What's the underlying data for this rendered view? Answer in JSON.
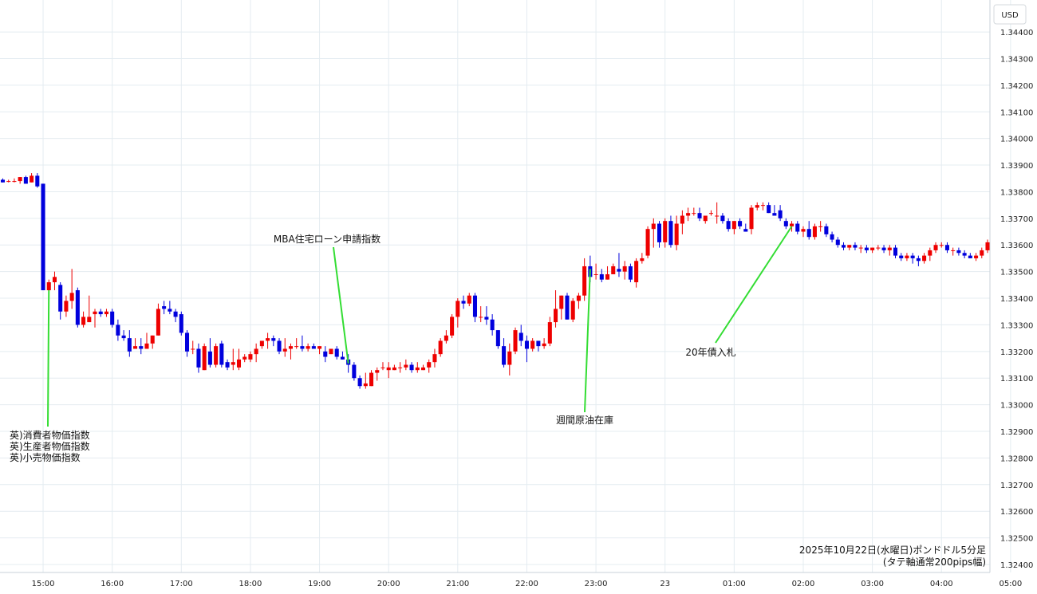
{
  "chart_data": {
    "type": "candlestick",
    "title_line1": "2025年10月22日(水曜日)ポンドドル5分足",
    "title_line2": "(タテ軸通常200pips幅)",
    "currency_label": "USD",
    "ylim": [
      1.3237,
      1.3452
    ],
    "y_ticks": [
      "1.34400",
      "1.34300",
      "1.34200",
      "1.34100",
      "1.34000",
      "1.33900",
      "1.33800",
      "1.33700",
      "1.33600",
      "1.33500",
      "1.33400",
      "1.33300",
      "1.33200",
      "1.33100",
      "1.33000",
      "1.32900",
      "1.32800",
      "1.32700",
      "1.32600",
      "1.32500",
      "1.32400"
    ],
    "x_ticks": [
      "15:00",
      "16:00",
      "17:00",
      "18:00",
      "19:00",
      "20:00",
      "21:00",
      "22:00",
      "23:00",
      "23",
      "01:00",
      "02:00",
      "03:00",
      "04:00",
      "05:00"
    ],
    "colors": {
      "up": "#ee0000",
      "down": "#0000dd",
      "grid": "#e4ecf1",
      "annotation_line": "#33dd33"
    },
    "annotations": [
      {
        "lines": [
          "英)消費者物価指数",
          "英)生産者物価指数",
          "英)小売物価指数"
        ],
        "time_index": 8
      },
      {
        "lines": [
          "MBA住宅ローン申請指数"
        ],
        "time_index": 60
      },
      {
        "lines": [
          "週間原油在庫"
        ],
        "time_index": 102
      },
      {
        "lines": [
          "20年債入札"
        ],
        "time_index": 137
      }
    ],
    "candles": [
      {
        "o": 1.33845,
        "h": 1.3385,
        "l": 1.33835,
        "c": 1.33835
      },
      {
        "o": 1.3384,
        "h": 1.33845,
        "l": 1.33835,
        "c": 1.3384
      },
      {
        "o": 1.3384,
        "h": 1.3385,
        "l": 1.33835,
        "c": 1.3384
      },
      {
        "o": 1.3384,
        "h": 1.33855,
        "l": 1.3383,
        "c": 1.33855
      },
      {
        "o": 1.33855,
        "h": 1.3386,
        "l": 1.3383,
        "c": 1.3383
      },
      {
        "o": 1.33835,
        "h": 1.3387,
        "l": 1.33835,
        "c": 1.3386
      },
      {
        "o": 1.3386,
        "h": 1.3387,
        "l": 1.33815,
        "c": 1.3382
      },
      {
        "o": 1.3383,
        "h": 1.3383,
        "l": 1.3344,
        "c": 1.3343
      },
      {
        "o": 1.3343,
        "h": 1.3347,
        "l": 1.3339,
        "c": 1.3346
      },
      {
        "o": 1.3346,
        "h": 1.335,
        "l": 1.3343,
        "c": 1.3348
      },
      {
        "o": 1.3345,
        "h": 1.3346,
        "l": 1.3332,
        "c": 1.3335
      },
      {
        "o": 1.3335,
        "h": 1.3341,
        "l": 1.3333,
        "c": 1.3339
      },
      {
        "o": 1.3339,
        "h": 1.3351,
        "l": 1.3336,
        "c": 1.3342
      },
      {
        "o": 1.3343,
        "h": 1.3344,
        "l": 1.3329,
        "c": 1.333
      },
      {
        "o": 1.333,
        "h": 1.3335,
        "l": 1.3329,
        "c": 1.3333
      },
      {
        "o": 1.3331,
        "h": 1.3341,
        "l": 1.3331,
        "c": 1.3333
      },
      {
        "o": 1.3334,
        "h": 1.3336,
        "l": 1.3329,
        "c": 1.3335
      },
      {
        "o": 1.3335,
        "h": 1.3336,
        "l": 1.3333,
        "c": 1.3334
      },
      {
        "o": 1.3334,
        "h": 1.3336,
        "l": 1.3333,
        "c": 1.3335
      },
      {
        "o": 1.3335,
        "h": 1.3336,
        "l": 1.3329,
        "c": 1.333
      },
      {
        "o": 1.333,
        "h": 1.3332,
        "l": 1.3324,
        "c": 1.3326
      },
      {
        "o": 1.3326,
        "h": 1.3328,
        "l": 1.3324,
        "c": 1.3325
      },
      {
        "o": 1.3325,
        "h": 1.3328,
        "l": 1.3318,
        "c": 1.332
      },
      {
        "o": 1.3321,
        "h": 1.3325,
        "l": 1.3321,
        "c": 1.3322
      },
      {
        "o": 1.3322,
        "h": 1.3325,
        "l": 1.3319,
        "c": 1.3321
      },
      {
        "o": 1.3321,
        "h": 1.3327,
        "l": 1.3321,
        "c": 1.3323
      },
      {
        "o": 1.3323,
        "h": 1.3326,
        "l": 1.3321,
        "c": 1.3326
      },
      {
        "o": 1.3326,
        "h": 1.3338,
        "l": 1.3326,
        "c": 1.3336
      },
      {
        "o": 1.3337,
        "h": 1.3339,
        "l": 1.3334,
        "c": 1.3336
      },
      {
        "o": 1.3336,
        "h": 1.3339,
        "l": 1.3334,
        "c": 1.3335
      },
      {
        "o": 1.3335,
        "h": 1.3336,
        "l": 1.3331,
        "c": 1.3333
      },
      {
        "o": 1.3334,
        "h": 1.3335,
        "l": 1.3326,
        "c": 1.3327
      },
      {
        "o": 1.3327,
        "h": 1.3328,
        "l": 1.3318,
        "c": 1.332
      },
      {
        "o": 1.3321,
        "h": 1.3324,
        "l": 1.3319,
        "c": 1.3321
      },
      {
        "o": 1.3321,
        "h": 1.3323,
        "l": 1.3312,
        "c": 1.3314
      },
      {
        "o": 1.3313,
        "h": 1.3323,
        "l": 1.3313,
        "c": 1.3322
      },
      {
        "o": 1.332,
        "h": 1.3325,
        "l": 1.3314,
        "c": 1.3315
      },
      {
        "o": 1.3315,
        "h": 1.3323,
        "l": 1.3314,
        "c": 1.3322
      },
      {
        "o": 1.3323,
        "h": 1.3324,
        "l": 1.3314,
        "c": 1.3315
      },
      {
        "o": 1.3316,
        "h": 1.3317,
        "l": 1.3313,
        "c": 1.3314
      },
      {
        "o": 1.3315,
        "h": 1.3321,
        "l": 1.3313,
        "c": 1.3316
      },
      {
        "o": 1.3314,
        "h": 1.3321,
        "l": 1.3313,
        "c": 1.3317
      },
      {
        "o": 1.3317,
        "h": 1.3319,
        "l": 1.3316,
        "c": 1.3318
      },
      {
        "o": 1.3317,
        "h": 1.332,
        "l": 1.3316,
        "c": 1.3319
      },
      {
        "o": 1.3319,
        "h": 1.3323,
        "l": 1.3316,
        "c": 1.3321
      },
      {
        "o": 1.3322,
        "h": 1.3324,
        "l": 1.3321,
        "c": 1.3324
      },
      {
        "o": 1.3324,
        "h": 1.3327,
        "l": 1.3321,
        "c": 1.3325
      },
      {
        "o": 1.3325,
        "h": 1.3326,
        "l": 1.3322,
        "c": 1.3324
      },
      {
        "o": 1.3324,
        "h": 1.3325,
        "l": 1.3319,
        "c": 1.332
      },
      {
        "o": 1.332,
        "h": 1.3325,
        "l": 1.3318,
        "c": 1.3321
      },
      {
        "o": 1.3321,
        "h": 1.3323,
        "l": 1.3317,
        "c": 1.3322
      },
      {
        "o": 1.3322,
        "h": 1.3325,
        "l": 1.3321,
        "c": 1.3322
      },
      {
        "o": 1.3322,
        "h": 1.3326,
        "l": 1.332,
        "c": 1.3321
      },
      {
        "o": 1.3321,
        "h": 1.3323,
        "l": 1.332,
        "c": 1.3322
      },
      {
        "o": 1.3322,
        "h": 1.3323,
        "l": 1.3321,
        "c": 1.3321
      },
      {
        "o": 1.3321,
        "h": 1.3322,
        "l": 1.3319,
        "c": 1.3322
      },
      {
        "o": 1.332,
        "h": 1.3322,
        "l": 1.3316,
        "c": 1.3318
      },
      {
        "o": 1.3319,
        "h": 1.3321,
        "l": 1.3319,
        "c": 1.3321
      },
      {
        "o": 1.3321,
        "h": 1.3322,
        "l": 1.3317,
        "c": 1.3318
      },
      {
        "o": 1.3318,
        "h": 1.332,
        "l": 1.3317,
        "c": 1.3317
      },
      {
        "o": 1.3317,
        "h": 1.3319,
        "l": 1.3312,
        "c": 1.3315
      },
      {
        "o": 1.3315,
        "h": 1.3316,
        "l": 1.3309,
        "c": 1.331
      },
      {
        "o": 1.331,
        "h": 1.3311,
        "l": 1.3306,
        "c": 1.3307
      },
      {
        "o": 1.3307,
        "h": 1.3312,
        "l": 1.3306,
        "c": 1.3308
      },
      {
        "o": 1.3307,
        "h": 1.3313,
        "l": 1.3307,
        "c": 1.3312
      },
      {
        "o": 1.3312,
        "h": 1.3314,
        "l": 1.3309,
        "c": 1.3313
      },
      {
        "o": 1.3314,
        "h": 1.3316,
        "l": 1.3313,
        "c": 1.3314
      },
      {
        "o": 1.3313,
        "h": 1.3316,
        "l": 1.331,
        "c": 1.3314
      },
      {
        "o": 1.3313,
        "h": 1.3315,
        "l": 1.3313,
        "c": 1.3314
      },
      {
        "o": 1.3314,
        "h": 1.3316,
        "l": 1.3312,
        "c": 1.3314
      },
      {
        "o": 1.3314,
        "h": 1.3317,
        "l": 1.3313,
        "c": 1.3315
      },
      {
        "o": 1.3315,
        "h": 1.3316,
        "l": 1.3312,
        "c": 1.3313
      },
      {
        "o": 1.3313,
        "h": 1.3316,
        "l": 1.3312,
        "c": 1.3314
      },
      {
        "o": 1.3313,
        "h": 1.3315,
        "l": 1.3313,
        "c": 1.3314
      },
      {
        "o": 1.3314,
        "h": 1.3317,
        "l": 1.3312,
        "c": 1.3316
      },
      {
        "o": 1.3316,
        "h": 1.3321,
        "l": 1.3314,
        "c": 1.3319
      },
      {
        "o": 1.3319,
        "h": 1.3325,
        "l": 1.3318,
        "c": 1.3324
      },
      {
        "o": 1.3324,
        "h": 1.3328,
        "l": 1.3323,
        "c": 1.3326
      },
      {
        "o": 1.3326,
        "h": 1.3334,
        "l": 1.3325,
        "c": 1.3333
      },
      {
        "o": 1.3333,
        "h": 1.334,
        "l": 1.3329,
        "c": 1.3339
      },
      {
        "o": 1.3339,
        "h": 1.3341,
        "l": 1.3336,
        "c": 1.3338
      },
      {
        "o": 1.3338,
        "h": 1.3342,
        "l": 1.3337,
        "c": 1.3341
      },
      {
        "o": 1.3341,
        "h": 1.3342,
        "l": 1.3331,
        "c": 1.3333
      },
      {
        "o": 1.3333,
        "h": 1.3337,
        "l": 1.3331,
        "c": 1.3333
      },
      {
        "o": 1.3333,
        "h": 1.3337,
        "l": 1.333,
        "c": 1.3332
      },
      {
        "o": 1.3332,
        "h": 1.3334,
        "l": 1.3326,
        "c": 1.3328
      },
      {
        "o": 1.3328,
        "h": 1.3328,
        "l": 1.3321,
        "c": 1.3322
      },
      {
        "o": 1.3322,
        "h": 1.3325,
        "l": 1.3314,
        "c": 1.3315
      },
      {
        "o": 1.3315,
        "h": 1.3323,
        "l": 1.3311,
        "c": 1.332
      },
      {
        "o": 1.332,
        "h": 1.3329,
        "l": 1.3319,
        "c": 1.3328
      },
      {
        "o": 1.3327,
        "h": 1.333,
        "l": 1.3322,
        "c": 1.3324
      },
      {
        "o": 1.3324,
        "h": 1.3326,
        "l": 1.3316,
        "c": 1.3321
      },
      {
        "o": 1.3321,
        "h": 1.3325,
        "l": 1.332,
        "c": 1.3324
      },
      {
        "o": 1.3324,
        "h": 1.3324,
        "l": 1.332,
        "c": 1.3322
      },
      {
        "o": 1.3322,
        "h": 1.3325,
        "l": 1.3321,
        "c": 1.3323
      },
      {
        "o": 1.3323,
        "h": 1.3333,
        "l": 1.3322,
        "c": 1.3331
      },
      {
        "o": 1.3331,
        "h": 1.3343,
        "l": 1.3329,
        "c": 1.3336
      },
      {
        "o": 1.3336,
        "h": 1.3341,
        "l": 1.3332,
        "c": 1.3341
      },
      {
        "o": 1.3341,
        "h": 1.3342,
        "l": 1.3332,
        "c": 1.3332
      },
      {
        "o": 1.3332,
        "h": 1.334,
        "l": 1.3331,
        "c": 1.3339
      },
      {
        "o": 1.3339,
        "h": 1.3342,
        "l": 1.3336,
        "c": 1.3341
      },
      {
        "o": 1.3341,
        "h": 1.3355,
        "l": 1.3339,
        "c": 1.3352
      },
      {
        "o": 1.3352,
        "h": 1.3356,
        "l": 1.3346,
        "c": 1.3348
      },
      {
        "o": 1.3349,
        "h": 1.3353,
        "l": 1.3347,
        "c": 1.3349
      },
      {
        "o": 1.3349,
        "h": 1.3351,
        "l": 1.3346,
        "c": 1.3347
      },
      {
        "o": 1.3347,
        "h": 1.3352,
        "l": 1.3347,
        "c": 1.3349
      },
      {
        "o": 1.3349,
        "h": 1.3353,
        "l": 1.3349,
        "c": 1.3352
      },
      {
        "o": 1.3351,
        "h": 1.3357,
        "l": 1.3348,
        "c": 1.335
      },
      {
        "o": 1.335,
        "h": 1.3354,
        "l": 1.3347,
        "c": 1.3352
      },
      {
        "o": 1.3352,
        "h": 1.3353,
        "l": 1.3346,
        "c": 1.3347
      },
      {
        "o": 1.3346,
        "h": 1.3355,
        "l": 1.3344,
        "c": 1.3354
      },
      {
        "o": 1.3354,
        "h": 1.3357,
        "l": 1.3353,
        "c": 1.3355
      },
      {
        "o": 1.3356,
        "h": 1.3367,
        "l": 1.3355,
        "c": 1.3366
      },
      {
        "o": 1.3366,
        "h": 1.337,
        "l": 1.3359,
        "c": 1.3368
      },
      {
        "o": 1.3368,
        "h": 1.3369,
        "l": 1.3359,
        "c": 1.3361
      },
      {
        "o": 1.3361,
        "h": 1.337,
        "l": 1.3359,
        "c": 1.3369
      },
      {
        "o": 1.3369,
        "h": 1.3371,
        "l": 1.3359,
        "c": 1.336
      },
      {
        "o": 1.336,
        "h": 1.3371,
        "l": 1.3358,
        "c": 1.3368
      },
      {
        "o": 1.3368,
        "h": 1.3373,
        "l": 1.3364,
        "c": 1.3371
      },
      {
        "o": 1.3371,
        "h": 1.3374,
        "l": 1.3369,
        "c": 1.3372
      },
      {
        "o": 1.3372,
        "h": 1.3374,
        "l": 1.3371,
        "c": 1.3372
      },
      {
        "o": 1.3372,
        "h": 1.3374,
        "l": 1.3369,
        "c": 1.337
      },
      {
        "o": 1.3369,
        "h": 1.3371,
        "l": 1.3368,
        "c": 1.3371
      },
      {
        "o": 1.3372,
        "h": 1.3373,
        "l": 1.3371,
        "c": 1.3372
      },
      {
        "o": 1.3371,
        "h": 1.3376,
        "l": 1.3368,
        "c": 1.3371
      },
      {
        "o": 1.3371,
        "h": 1.3372,
        "l": 1.3368,
        "c": 1.3369
      },
      {
        "o": 1.3369,
        "h": 1.337,
        "l": 1.3365,
        "c": 1.3366
      },
      {
        "o": 1.3366,
        "h": 1.3369,
        "l": 1.3364,
        "c": 1.3369
      },
      {
        "o": 1.3369,
        "h": 1.337,
        "l": 1.3366,
        "c": 1.3367
      },
      {
        "o": 1.3366,
        "h": 1.3368,
        "l": 1.3365,
        "c": 1.3365
      },
      {
        "o": 1.3366,
        "h": 1.3375,
        "l": 1.3364,
        "c": 1.3374
      },
      {
        "o": 1.3374,
        "h": 1.3376,
        "l": 1.3373,
        "c": 1.3375
      },
      {
        "o": 1.3375,
        "h": 1.3376,
        "l": 1.3373,
        "c": 1.3375
      },
      {
        "o": 1.3375,
        "h": 1.3376,
        "l": 1.3372,
        "c": 1.3372
      },
      {
        "o": 1.3372,
        "h": 1.3375,
        "l": 1.3371,
        "c": 1.3371
      },
      {
        "o": 1.3373,
        "h": 1.3375,
        "l": 1.3369,
        "c": 1.337
      },
      {
        "o": 1.3369,
        "h": 1.337,
        "l": 1.3366,
        "c": 1.3367
      },
      {
        "o": 1.3367,
        "h": 1.3369,
        "l": 1.3365,
        "c": 1.3368
      },
      {
        "o": 1.3368,
        "h": 1.3369,
        "l": 1.3364,
        "c": 1.3365
      },
      {
        "o": 1.3365,
        "h": 1.3367,
        "l": 1.3363,
        "c": 1.3366
      },
      {
        "o": 1.3366,
        "h": 1.3369,
        "l": 1.3362,
        "c": 1.3363
      },
      {
        "o": 1.3363,
        "h": 1.3368,
        "l": 1.3362,
        "c": 1.3367
      },
      {
        "o": 1.3367,
        "h": 1.3369,
        "l": 1.3365,
        "c": 1.3367
      },
      {
        "o": 1.3367,
        "h": 1.3368,
        "l": 1.3363,
        "c": 1.3364
      },
      {
        "o": 1.3364,
        "h": 1.3365,
        "l": 1.3361,
        "c": 1.3362
      },
      {
        "o": 1.3362,
        "h": 1.3363,
        "l": 1.3359,
        "c": 1.336
      },
      {
        "o": 1.336,
        "h": 1.3361,
        "l": 1.3358,
        "c": 1.3359
      },
      {
        "o": 1.3359,
        "h": 1.336,
        "l": 1.3358,
        "c": 1.336
      },
      {
        "o": 1.336,
        "h": 1.3361,
        "l": 1.3358,
        "c": 1.3359
      },
      {
        "o": 1.3359,
        "h": 1.336,
        "l": 1.3357,
        "c": 1.3359
      },
      {
        "o": 1.3359,
        "h": 1.336,
        "l": 1.3357,
        "c": 1.3358
      },
      {
        "o": 1.3358,
        "h": 1.3359,
        "l": 1.3357,
        "c": 1.3359
      },
      {
        "o": 1.3359,
        "h": 1.336,
        "l": 1.3358,
        "c": 1.3359
      },
      {
        "o": 1.3359,
        "h": 1.336,
        "l": 1.3357,
        "c": 1.3358
      },
      {
        "o": 1.3358,
        "h": 1.336,
        "l": 1.3356,
        "c": 1.3359
      },
      {
        "o": 1.3359,
        "h": 1.336,
        "l": 1.3355,
        "c": 1.3356
      },
      {
        "o": 1.3356,
        "h": 1.3357,
        "l": 1.3354,
        "c": 1.3355
      },
      {
        "o": 1.3355,
        "h": 1.3357,
        "l": 1.3354,
        "c": 1.3356
      },
      {
        "o": 1.3356,
        "h": 1.3357,
        "l": 1.3353,
        "c": 1.3355
      },
      {
        "o": 1.3355,
        "h": 1.3356,
        "l": 1.3352,
        "c": 1.3354
      },
      {
        "o": 1.3354,
        "h": 1.3357,
        "l": 1.3353,
        "c": 1.3356
      },
      {
        "o": 1.3356,
        "h": 1.3359,
        "l": 1.3354,
        "c": 1.3358
      },
      {
        "o": 1.3358,
        "h": 1.3361,
        "l": 1.3357,
        "c": 1.336
      },
      {
        "o": 1.336,
        "h": 1.3361,
        "l": 1.3359,
        "c": 1.336
      },
      {
        "o": 1.336,
        "h": 1.3361,
        "l": 1.3357,
        "c": 1.3358
      },
      {
        "o": 1.3358,
        "h": 1.3359,
        "l": 1.3356,
        "c": 1.3358
      },
      {
        "o": 1.3358,
        "h": 1.3359,
        "l": 1.3356,
        "c": 1.3357
      },
      {
        "o": 1.3357,
        "h": 1.3358,
        "l": 1.3355,
        "c": 1.3356
      },
      {
        "o": 1.3356,
        "h": 1.3357,
        "l": 1.3355,
        "c": 1.3355
      },
      {
        "o": 1.3355,
        "h": 1.3357,
        "l": 1.3354,
        "c": 1.3356
      },
      {
        "o": 1.3356,
        "h": 1.3359,
        "l": 1.3355,
        "c": 1.3358
      },
      {
        "o": 1.3358,
        "h": 1.3362,
        "l": 1.3357,
        "c": 1.3361
      }
    ]
  }
}
